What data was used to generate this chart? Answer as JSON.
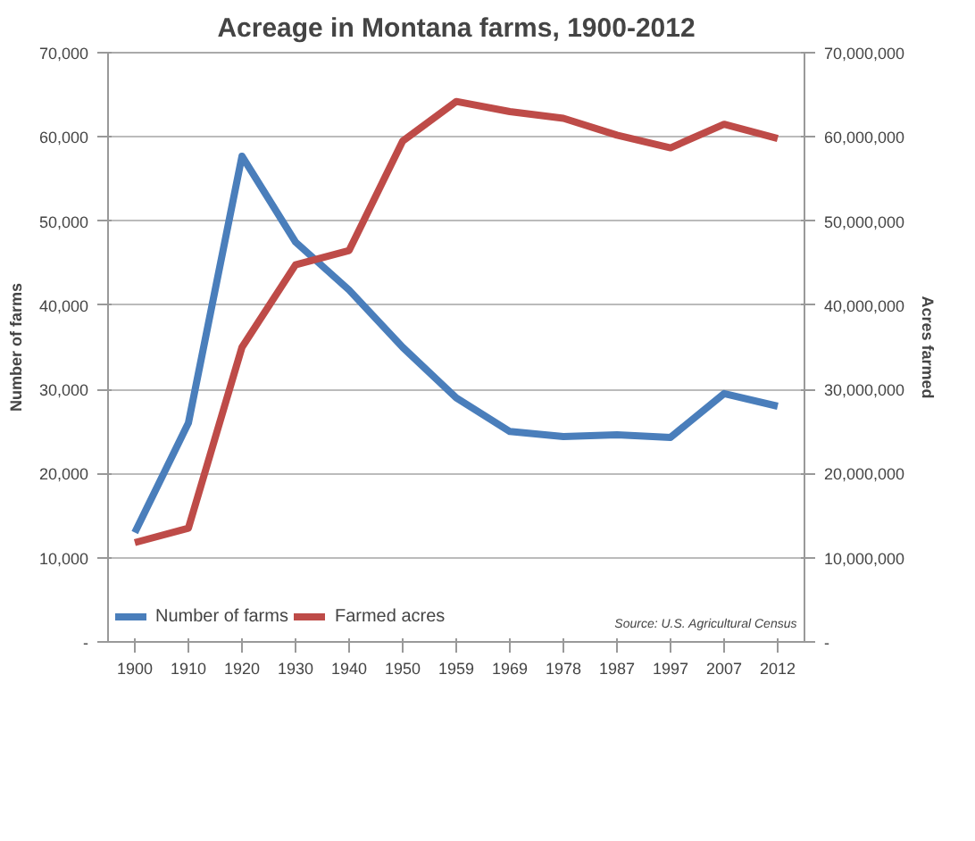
{
  "chart_data": {
    "type": "line",
    "title": "Acreage in Montana farms, 1900-2012",
    "categories": [
      "1900",
      "1910",
      "1920",
      "1930",
      "1940",
      "1950",
      "1959",
      "1969",
      "1978",
      "1987",
      "1997",
      "2007",
      "2012"
    ],
    "series": [
      {
        "name": "Number of farms",
        "color": "#4a7ebb",
        "values": [
          13000,
          26000,
          57700,
          47500,
          41800,
          35000,
          29000,
          25000,
          24400,
          24600,
          24300,
          29500,
          28000
        ]
      },
      {
        "name": "Farmed acres",
        "color": "#be4b48",
        "axis": "y2",
        "values": [
          11800000,
          13500000,
          35000000,
          44800000,
          46500000,
          59500000,
          64200000,
          63000000,
          62200000,
          60200000,
          58700000,
          61500000,
          59800000
        ]
      }
    ],
    "ylabel": "Number of farms",
    "y2label": "Acres farmed",
    "ylim": [
      0,
      70000
    ],
    "yticks": [
      {
        "value": 0,
        "label": "-"
      },
      {
        "value": 10000,
        "label": "10,000"
      },
      {
        "value": 20000,
        "label": "20,000"
      },
      {
        "value": 30000,
        "label": "30,000"
      },
      {
        "value": 40000,
        "label": "40,000"
      },
      {
        "value": 50000,
        "label": "50,000"
      },
      {
        "value": 60000,
        "label": "60,000"
      },
      {
        "value": 70000,
        "label": "70,000"
      }
    ],
    "y2lim": [
      0,
      70000000
    ],
    "y2ticks": [
      {
        "value": 0,
        "label": "-"
      },
      {
        "value": 10000000,
        "label": "10,000,000"
      },
      {
        "value": 20000000,
        "label": "20,000,000"
      },
      {
        "value": 30000000,
        "label": "30,000,000"
      },
      {
        "value": 40000000,
        "label": "40,000,000"
      },
      {
        "value": 50000000,
        "label": "50,000,000"
      },
      {
        "value": 60000000,
        "label": "60,000,000"
      },
      {
        "value": 70000000,
        "label": "70,000,000"
      }
    ],
    "grid": "y",
    "legend": "bottom",
    "line_style": "solid",
    "marker": "none",
    "annotations": [
      "Source: U.S. Agricultural Census"
    ]
  }
}
